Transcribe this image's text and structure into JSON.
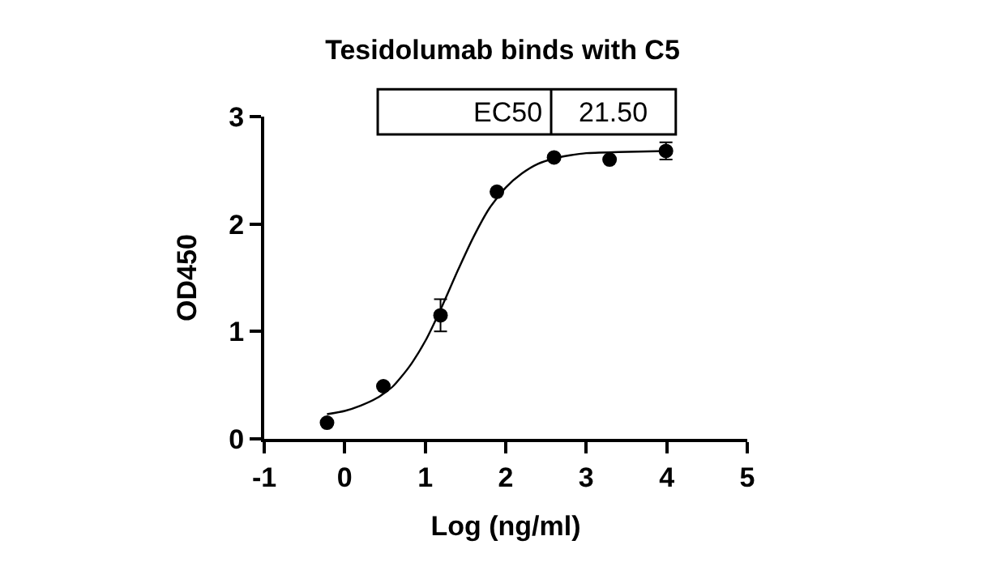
{
  "chart_data": {
    "type": "scatter",
    "title": "Tesidolumab binds with C5",
    "xlabel": "Log (ng/ml)",
    "ylabel": "OD450",
    "xlim": [
      -1,
      5
    ],
    "xticks": [
      -1,
      0,
      1,
      2,
      3,
      4,
      5
    ],
    "ylim": [
      0,
      3
    ],
    "yticks": [
      0,
      1,
      2,
      3
    ],
    "marker": "circle",
    "annotations": [
      "EC50",
      "21.50"
    ],
    "series": [
      {
        "color": "#000000",
        "x": [
          -0.22,
          0.48,
          1.19,
          1.89,
          2.6,
          3.29,
          3.99
        ],
        "values": [
          0.15,
          0.49,
          1.15,
          2.3,
          2.62,
          2.6,
          2.68
        ],
        "errors": [
          null,
          null,
          [
            1.0,
            1.3
          ],
          null,
          null,
          null,
          [
            2.6,
            2.76
          ]
        ]
      },
      {
        "type": "line",
        "color": "#000000",
        "line_style": "solid",
        "marker": "none",
        "x": [
          -0.22,
          0,
          0.2,
          0.4,
          0.6,
          0.8,
          1.0,
          1.2,
          1.4,
          1.6,
          1.8,
          2.0,
          2.2,
          2.4,
          2.6,
          2.8,
          3.0,
          3.4,
          4.0
        ],
        "values": [
          0.23,
          0.26,
          0.31,
          0.38,
          0.49,
          0.67,
          0.91,
          1.22,
          1.56,
          1.88,
          2.15,
          2.34,
          2.47,
          2.56,
          2.61,
          2.64,
          2.66,
          2.67,
          2.68
        ]
      }
    ]
  }
}
